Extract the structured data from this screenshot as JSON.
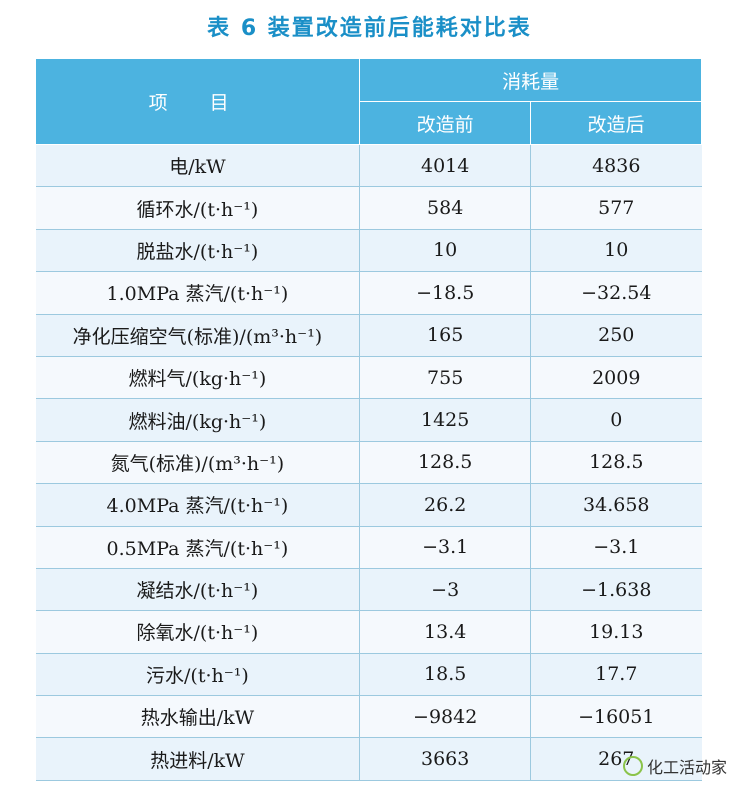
{
  "title": "表 6  装置改造前后能耗对比表",
  "header": {
    "item": "项 目",
    "group": "消耗量",
    "before": "改造前",
    "after": "改造后"
  },
  "rows": [
    {
      "item": "电/kW",
      "before": "4014",
      "after": "4836"
    },
    {
      "item": "循环水/(t·h⁻¹)",
      "before": "584",
      "after": "577"
    },
    {
      "item": "脱盐水/(t·h⁻¹)",
      "before": "10",
      "after": "10"
    },
    {
      "item": "1.0MPa 蒸汽/(t·h⁻¹)",
      "before": "−18.5",
      "after": "−32.54"
    },
    {
      "item": "净化压缩空气(标准)/(m³·h⁻¹)",
      "before": "165",
      "after": "250"
    },
    {
      "item": "燃料气/(kg·h⁻¹)",
      "before": "755",
      "after": "2009"
    },
    {
      "item": "燃料油/(kg·h⁻¹)",
      "before": "1425",
      "after": "0"
    },
    {
      "item": "氮气(标准)/(m³·h⁻¹)",
      "before": "128.5",
      "after": "128.5"
    },
    {
      "item": "4.0MPa 蒸汽/(t·h⁻¹)",
      "before": "26.2",
      "after": "34.658"
    },
    {
      "item": "0.5MPa 蒸汽/(t·h⁻¹)",
      "before": "−3.1",
      "after": "−3.1"
    },
    {
      "item": "凝结水/(t·h⁻¹)",
      "before": "−3",
      "after": "−1.638"
    },
    {
      "item": "除氧水/(t·h⁻¹)",
      "before": "13.4",
      "after": "19.13"
    },
    {
      "item": "污水/(t·h⁻¹)",
      "before": "18.5",
      "after": "17.7"
    },
    {
      "item": "热水输出/kW",
      "before": "−9842",
      "after": "−16051"
    },
    {
      "item": "热进料/kW",
      "before": "3663",
      "after": "267"
    }
  ],
  "watermark": "化工活动家",
  "watermark_icon": "wechat-icon"
}
